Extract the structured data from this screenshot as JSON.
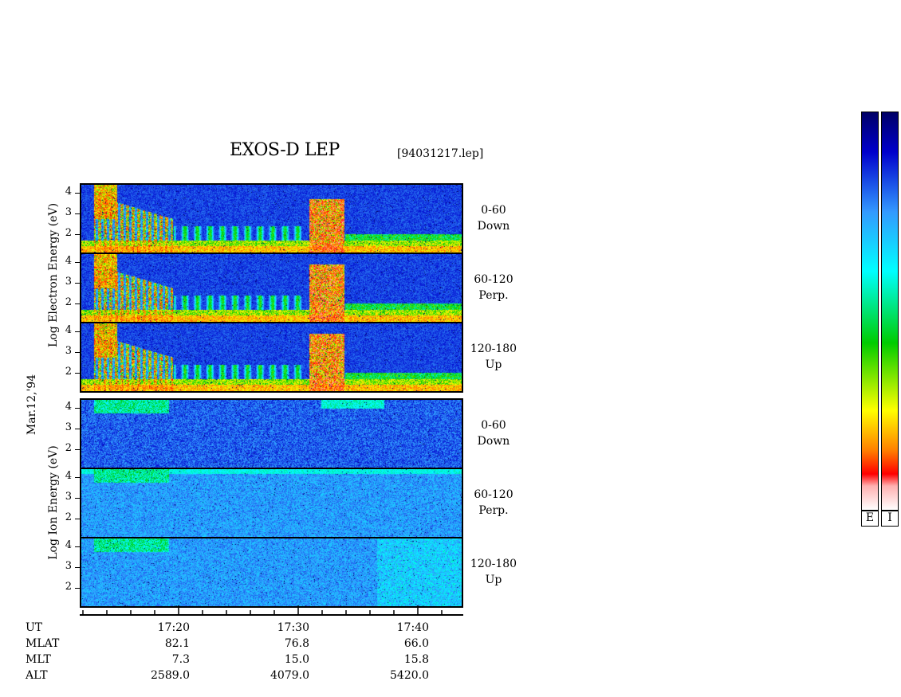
{
  "header": {
    "title": "EXOS-D LEP",
    "file": "[94031217.lep]"
  },
  "date_label": "Mar.12,'94",
  "electron_label": [
    "Log",
    "Electron",
    "Energy",
    "(eV)"
  ],
  "ion_label": [
    "Log",
    "Ion",
    "Energy",
    "(eV)"
  ],
  "energy_ticks": [
    "4",
    "3",
    "2"
  ],
  "channels": [
    {
      "angle": "0-60",
      "direction": "Down"
    },
    {
      "angle": "60-120",
      "direction": "Perp."
    },
    {
      "angle": "120-180",
      "direction": "Up"
    },
    {
      "angle": "0-60",
      "direction": "Down"
    },
    {
      "angle": "60-120",
      "direction": "Perp."
    },
    {
      "angle": "120-180",
      "direction": "Up"
    }
  ],
  "orbit": {
    "row_labels": [
      "UT",
      "MLAT",
      "MLT",
      "ALT"
    ],
    "columns": [
      {
        "UT": "17:20",
        "MLAT": "82.1",
        "MLT": "7.3",
        "ALT": "2589.0"
      },
      {
        "UT": "17:30",
        "MLAT": "76.8",
        "MLT": "15.0",
        "ALT": "4079.0"
      },
      {
        "UT": "17:40",
        "MLAT": "66.0",
        "MLT": "15.8",
        "ALT": "5420.0"
      }
    ]
  },
  "colorbars": [
    {
      "key": "E"
    },
    {
      "key": "I"
    }
  ],
  "colors": {
    "colormap": [
      "#ffffff",
      "#ffb0b0",
      "#ff0000",
      "#ff8000",
      "#ffff00",
      "#00cc00",
      "#00ffff",
      "#3399ff",
      "#0000cc",
      "#000066"
    ]
  },
  "chart_data": {
    "type": "heatmap",
    "title": "EXOS-D LEP",
    "subtitle": "[94031217.lep]",
    "xlabel": "UT",
    "ylabel_electron": "Log Electron Energy (eV)",
    "ylabel_ion": "Log Ion Energy (eV)",
    "x_ticks": [
      "17:20",
      "17:30",
      "17:40"
    ],
    "y_ticks": [
      2,
      3,
      4
    ],
    "ylim": [
      1,
      4
    ],
    "panels": [
      {
        "species": "Electron",
        "pitch_angle": "0-60",
        "direction": "Down"
      },
      {
        "species": "Electron",
        "pitch_angle": "60-120",
        "direction": "Perp."
      },
      {
        "species": "Electron",
        "pitch_angle": "120-180",
        "direction": "Up"
      },
      {
        "species": "Ion",
        "pitch_angle": "0-60",
        "direction": "Down"
      },
      {
        "species": "Ion",
        "pitch_angle": "60-120",
        "direction": "Perp."
      },
      {
        "species": "Ion",
        "pitch_angle": "120-180",
        "direction": "Up"
      }
    ],
    "colorbar_keys": [
      "E",
      "I"
    ]
  }
}
